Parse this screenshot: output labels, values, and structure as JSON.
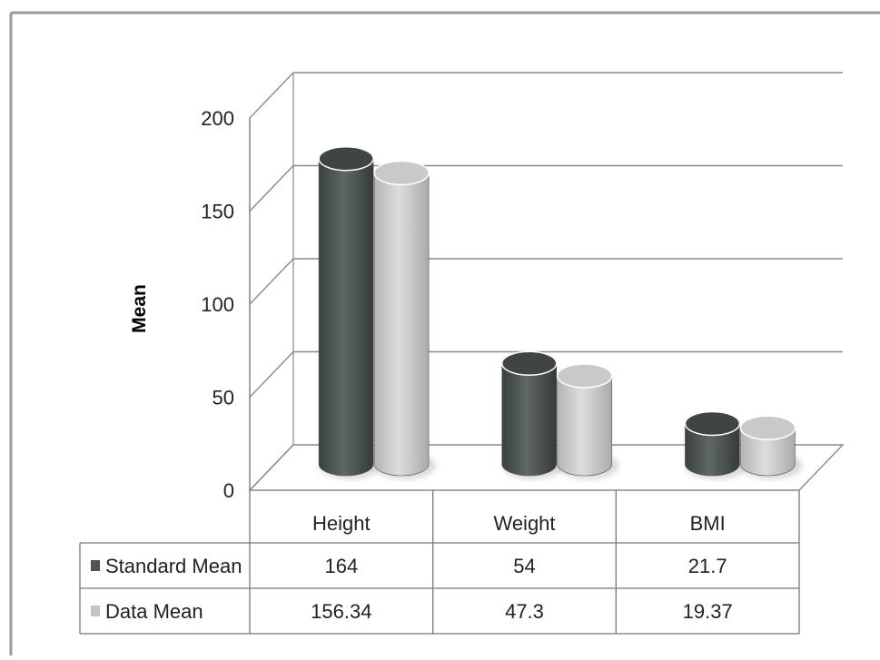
{
  "chart_data": {
    "type": "bar",
    "ylabel": "Mean",
    "ylim": [
      0,
      200
    ],
    "yticks": [
      0,
      50,
      100,
      150,
      200
    ],
    "categories": [
      "Height",
      "Weight",
      "BMI"
    ],
    "series": [
      {
        "name": "Standard Mean",
        "values": [
          164,
          54,
          21.7
        ],
        "value_labels": [
          "164",
          "54",
          "21.7"
        ],
        "color": "#4d5553"
      },
      {
        "name": "Data Mean",
        "values": [
          156.34,
          47.3,
          19.37
        ],
        "value_labels": [
          "156.34",
          "47.3",
          "19.37"
        ],
        "color": "#c4c4c4"
      }
    ],
    "data_table": true,
    "grid": true,
    "style": "3d-cylinder"
  }
}
